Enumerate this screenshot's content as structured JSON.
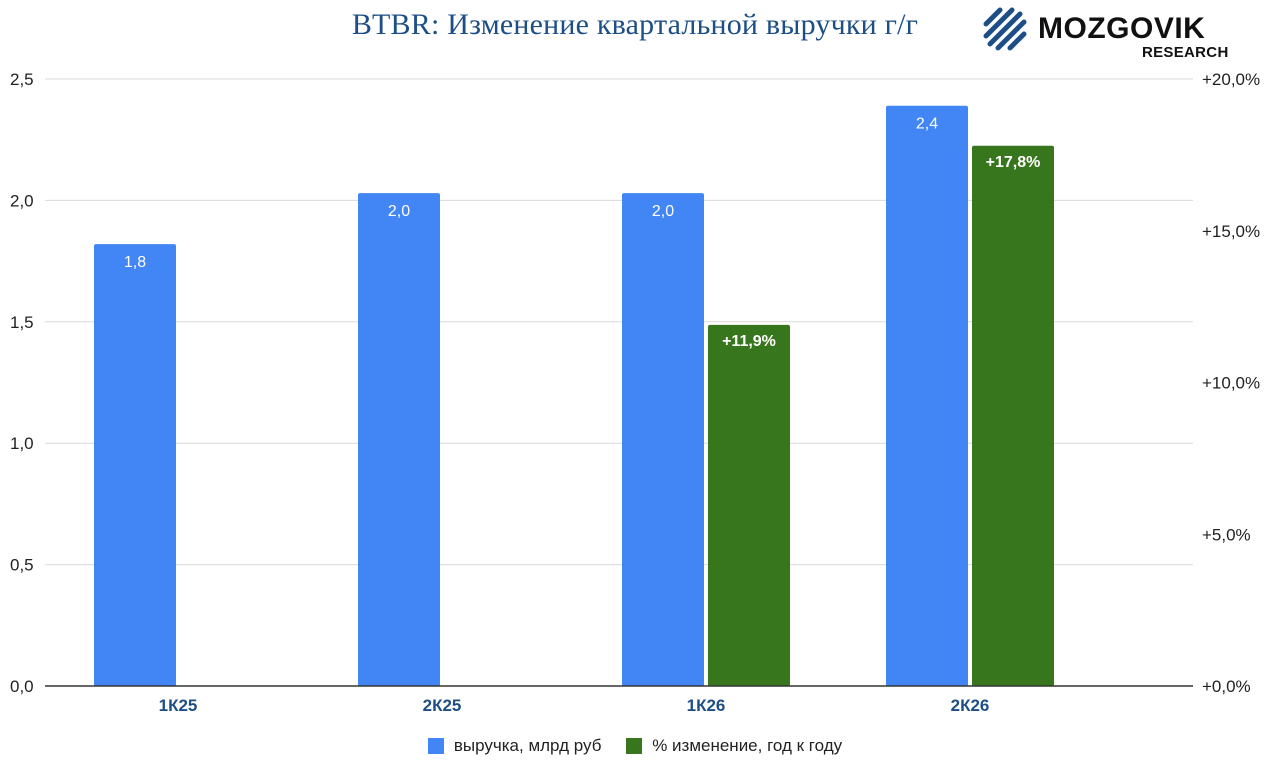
{
  "title": "BTBR: Изменение квартальной выручки г/г",
  "logo": {
    "brand": "MOZGOVIK",
    "sub": "RESEARCH"
  },
  "colors": {
    "revenue": "#4285f4",
    "change": "#38761d",
    "title": "#1d4f86",
    "grid": "#d9d9d9"
  },
  "chart_data": {
    "type": "bar",
    "categories": [
      "1К25",
      "2К25",
      "1К26",
      "2К26"
    ],
    "series": [
      {
        "name": "выручка, млрд руб",
        "axis": "left",
        "values": [
          1.82,
          2.03,
          2.03,
          2.39
        ],
        "labels": [
          "1,8",
          "2,0",
          "2,0",
          "2,4"
        ]
      },
      {
        "name": "% изменение, год к году",
        "axis": "right",
        "values": [
          null,
          null,
          11.9,
          17.8
        ],
        "labels": [
          "",
          "",
          "+11,9%",
          "+17,8%"
        ]
      }
    ],
    "left_axis": {
      "ylim": [
        0,
        2.5
      ],
      "ticks": [
        "0,0",
        "0,5",
        "1,0",
        "1,5",
        "2,0",
        "2,5"
      ]
    },
    "right_axis": {
      "ylim": [
        0,
        20
      ],
      "ticks": [
        "+0,0%",
        "+5,0%",
        "+10,0%",
        "+15,0%",
        "+20,0%"
      ]
    },
    "grid": true,
    "legend_position": "bottom"
  }
}
